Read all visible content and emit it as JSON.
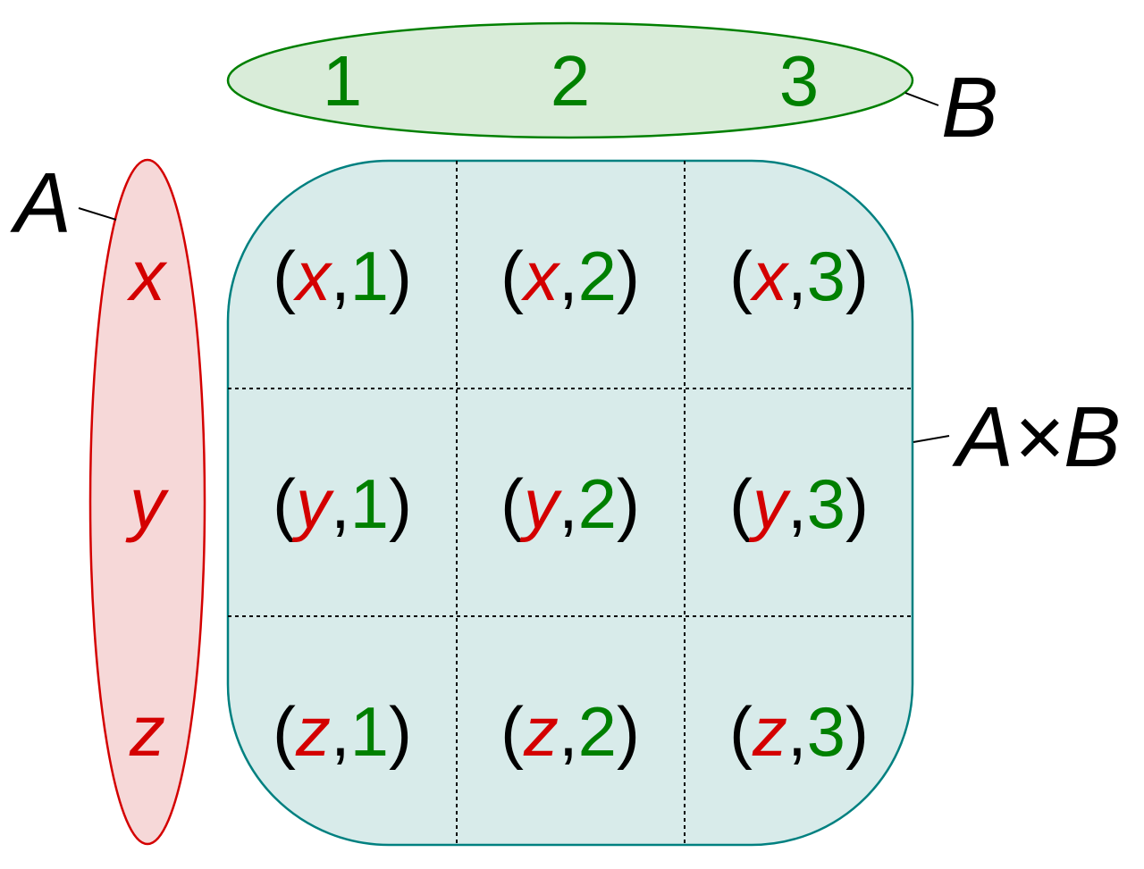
{
  "set_a": {
    "label": "A",
    "elements": [
      "x",
      "y",
      "z"
    ]
  },
  "set_b": {
    "label": "B",
    "elements": [
      "1",
      "2",
      "3"
    ]
  },
  "product": {
    "label": "A×B",
    "open": "(",
    "separator": ",",
    "close": ")",
    "rows": [
      [
        {
          "a": "x",
          "b": "1"
        },
        {
          "a": "x",
          "b": "2"
        },
        {
          "a": "x",
          "b": "3"
        }
      ],
      [
        {
          "a": "y",
          "b": "1"
        },
        {
          "a": "y",
          "b": "2"
        },
        {
          "a": "y",
          "b": "3"
        }
      ],
      [
        {
          "a": "z",
          "b": "1"
        },
        {
          "a": "z",
          "b": "2"
        },
        {
          "a": "z",
          "b": "3"
        }
      ]
    ]
  },
  "colors": {
    "set_a_text": "#d40000",
    "set_a_fill": "#f6d8d8",
    "set_a_stroke": "#d40000",
    "set_b_text": "#008000",
    "set_b_fill": "#d9ecd9",
    "set_b_stroke": "#008000",
    "product_fill": "#d8ebea",
    "product_stroke": "#008080"
  }
}
